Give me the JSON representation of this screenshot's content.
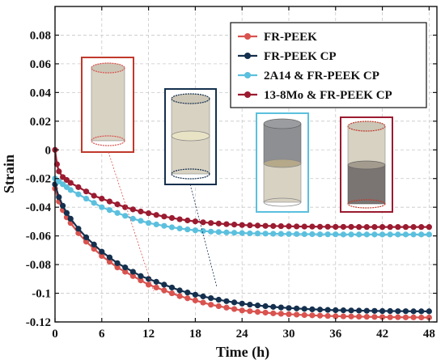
{
  "chart_data": {
    "type": "line",
    "title": "",
    "xlabel": "Time (h)",
    "ylabel": "Strain",
    "xlim": [
      0,
      49
    ],
    "ylim": [
      -0.12,
      0.1
    ],
    "xticks": [
      0,
      6,
      12,
      18,
      24,
      30,
      36,
      42,
      48
    ],
    "yticks": [
      -0.12,
      -0.1,
      -0.08,
      -0.06,
      -0.04,
      -0.02,
      0,
      0.02,
      0.04,
      0.06,
      0.08
    ],
    "ytick_labels": [
      "-0.12",
      "-0.1",
      "-0.08",
      "-0.06",
      "-0.04",
      "-0.02",
      "0",
      "0.02",
      "0.04",
      "0.06",
      "0.08"
    ],
    "grid": true,
    "legend_position": "top-right",
    "colors": {
      "fr_peek": "#d9534f",
      "fr_peek_cp": "#14304e",
      "al_cp": "#5bc0de",
      "mo_cp": "#9b1b30"
    },
    "series": [
      {
        "name": "FR-PEEK",
        "color": "#d9534f",
        "x": [
          0,
          0.5,
          1,
          1.5,
          2,
          3,
          4,
          5,
          6,
          7,
          8,
          9,
          10,
          11,
          12,
          13,
          14,
          15,
          16,
          17,
          18,
          19,
          20,
          21,
          22,
          23,
          24,
          25,
          26,
          27,
          28,
          29,
          30,
          31,
          32,
          33,
          34,
          35,
          36,
          37,
          38,
          39,
          40,
          41,
          42,
          43,
          44,
          45,
          46,
          47,
          48
        ],
        "y": [
          -0.027,
          -0.036,
          -0.042,
          -0.047,
          -0.051,
          -0.058,
          -0.064,
          -0.069,
          -0.074,
          -0.078,
          -0.082,
          -0.085,
          -0.088,
          -0.091,
          -0.094,
          -0.096,
          -0.098,
          -0.1,
          -0.102,
          -0.1035,
          -0.105,
          -0.1065,
          -0.108,
          -0.109,
          -0.11,
          -0.111,
          -0.112,
          -0.1125,
          -0.113,
          -0.1135,
          -0.114,
          -0.1143,
          -0.1146,
          -0.1149,
          -0.1152,
          -0.1154,
          -0.1156,
          -0.1158,
          -0.116,
          -0.1161,
          -0.1162,
          -0.1163,
          -0.1164,
          -0.1165,
          -0.1166,
          -0.1167,
          -0.1167,
          -0.1168,
          -0.1168,
          -0.1169,
          -0.1169
        ]
      },
      {
        "name": "FR-PEEK CP",
        "color": "#14304e",
        "x": [
          0,
          0.5,
          1,
          1.5,
          2,
          3,
          4,
          5,
          6,
          7,
          8,
          9,
          10,
          11,
          12,
          13,
          14,
          15,
          16,
          17,
          18,
          19,
          20,
          21,
          22,
          23,
          24,
          25,
          26,
          27,
          28,
          29,
          30,
          31,
          32,
          33,
          34,
          35,
          36,
          37,
          38,
          39,
          40,
          41,
          42,
          43,
          44,
          45,
          46,
          47,
          48
        ],
        "y": [
          -0.024,
          -0.033,
          -0.039,
          -0.044,
          -0.048,
          -0.055,
          -0.061,
          -0.066,
          -0.071,
          -0.075,
          -0.079,
          -0.082,
          -0.085,
          -0.088,
          -0.09,
          -0.092,
          -0.094,
          -0.096,
          -0.098,
          -0.0995,
          -0.101,
          -0.1022,
          -0.1034,
          -0.1045,
          -0.1055,
          -0.1064,
          -0.1072,
          -0.1079,
          -0.1085,
          -0.109,
          -0.1095,
          -0.1099,
          -0.1103,
          -0.1106,
          -0.1109,
          -0.1112,
          -0.1114,
          -0.1116,
          -0.1118,
          -0.1119,
          -0.112,
          -0.1121,
          -0.1122,
          -0.1123,
          -0.1124,
          -0.1124,
          -0.1125,
          -0.1125,
          -0.1126,
          -0.1126,
          -0.1126
        ]
      },
      {
        "name": "2A14 & FR-PEEK CP",
        "color": "#5bc0de",
        "x": [
          0,
          0.5,
          1,
          1.5,
          2,
          3,
          4,
          5,
          6,
          7,
          8,
          9,
          10,
          11,
          12,
          13,
          14,
          15,
          16,
          17,
          18,
          19,
          20,
          21,
          22,
          23,
          24,
          25,
          26,
          27,
          28,
          29,
          30,
          31,
          32,
          33,
          34,
          35,
          36,
          37,
          38,
          39,
          40,
          41,
          42,
          43,
          44,
          45,
          46,
          47,
          48
        ],
        "y": [
          -0.02,
          -0.022,
          -0.024,
          -0.026,
          -0.028,
          -0.031,
          -0.034,
          -0.037,
          -0.04,
          -0.042,
          -0.044,
          -0.046,
          -0.048,
          -0.0495,
          -0.051,
          -0.052,
          -0.053,
          -0.054,
          -0.0548,
          -0.0555,
          -0.0561,
          -0.0566,
          -0.057,
          -0.0573,
          -0.0576,
          -0.0578,
          -0.058,
          -0.0582,
          -0.0583,
          -0.0584,
          -0.0585,
          -0.0586,
          -0.0587,
          -0.0587,
          -0.0588,
          -0.0588,
          -0.0589,
          -0.0589,
          -0.0589,
          -0.059,
          -0.059,
          -0.059,
          -0.059,
          -0.059,
          -0.059,
          -0.059,
          -0.059,
          -0.059,
          -0.059,
          -0.059,
          -0.059
        ]
      },
      {
        "name": "13-8Mo & FR-PEEK CP",
        "color": "#9b1b30",
        "x": [
          0,
          0.25,
          0.5,
          1,
          1.5,
          2,
          3,
          4,
          5,
          6,
          7,
          8,
          9,
          10,
          11,
          12,
          13,
          14,
          15,
          16,
          17,
          18,
          19,
          20,
          21,
          22,
          23,
          24,
          25,
          26,
          27,
          28,
          29,
          30,
          31,
          32,
          33,
          34,
          35,
          36,
          37,
          38,
          39,
          40,
          41,
          42,
          43,
          44,
          45,
          46,
          47,
          48
        ],
        "y": [
          0.0,
          -0.01,
          -0.015,
          -0.019,
          -0.021,
          -0.023,
          -0.026,
          -0.029,
          -0.032,
          -0.034,
          -0.036,
          -0.038,
          -0.04,
          -0.0415,
          -0.043,
          -0.0442,
          -0.0454,
          -0.0465,
          -0.0475,
          -0.0484,
          -0.0492,
          -0.0499,
          -0.0505,
          -0.051,
          -0.0514,
          -0.0518,
          -0.0521,
          -0.0524,
          -0.0526,
          -0.0528,
          -0.053,
          -0.0531,
          -0.0532,
          -0.0533,
          -0.0534,
          -0.0535,
          -0.0535,
          -0.0536,
          -0.0536,
          -0.0537,
          -0.0537,
          -0.0537,
          -0.0538,
          -0.0538,
          -0.0538,
          -0.0538,
          -0.0538,
          -0.0538,
          -0.0538,
          -0.0538,
          -0.0538,
          -0.0538
        ]
      }
    ]
  }
}
